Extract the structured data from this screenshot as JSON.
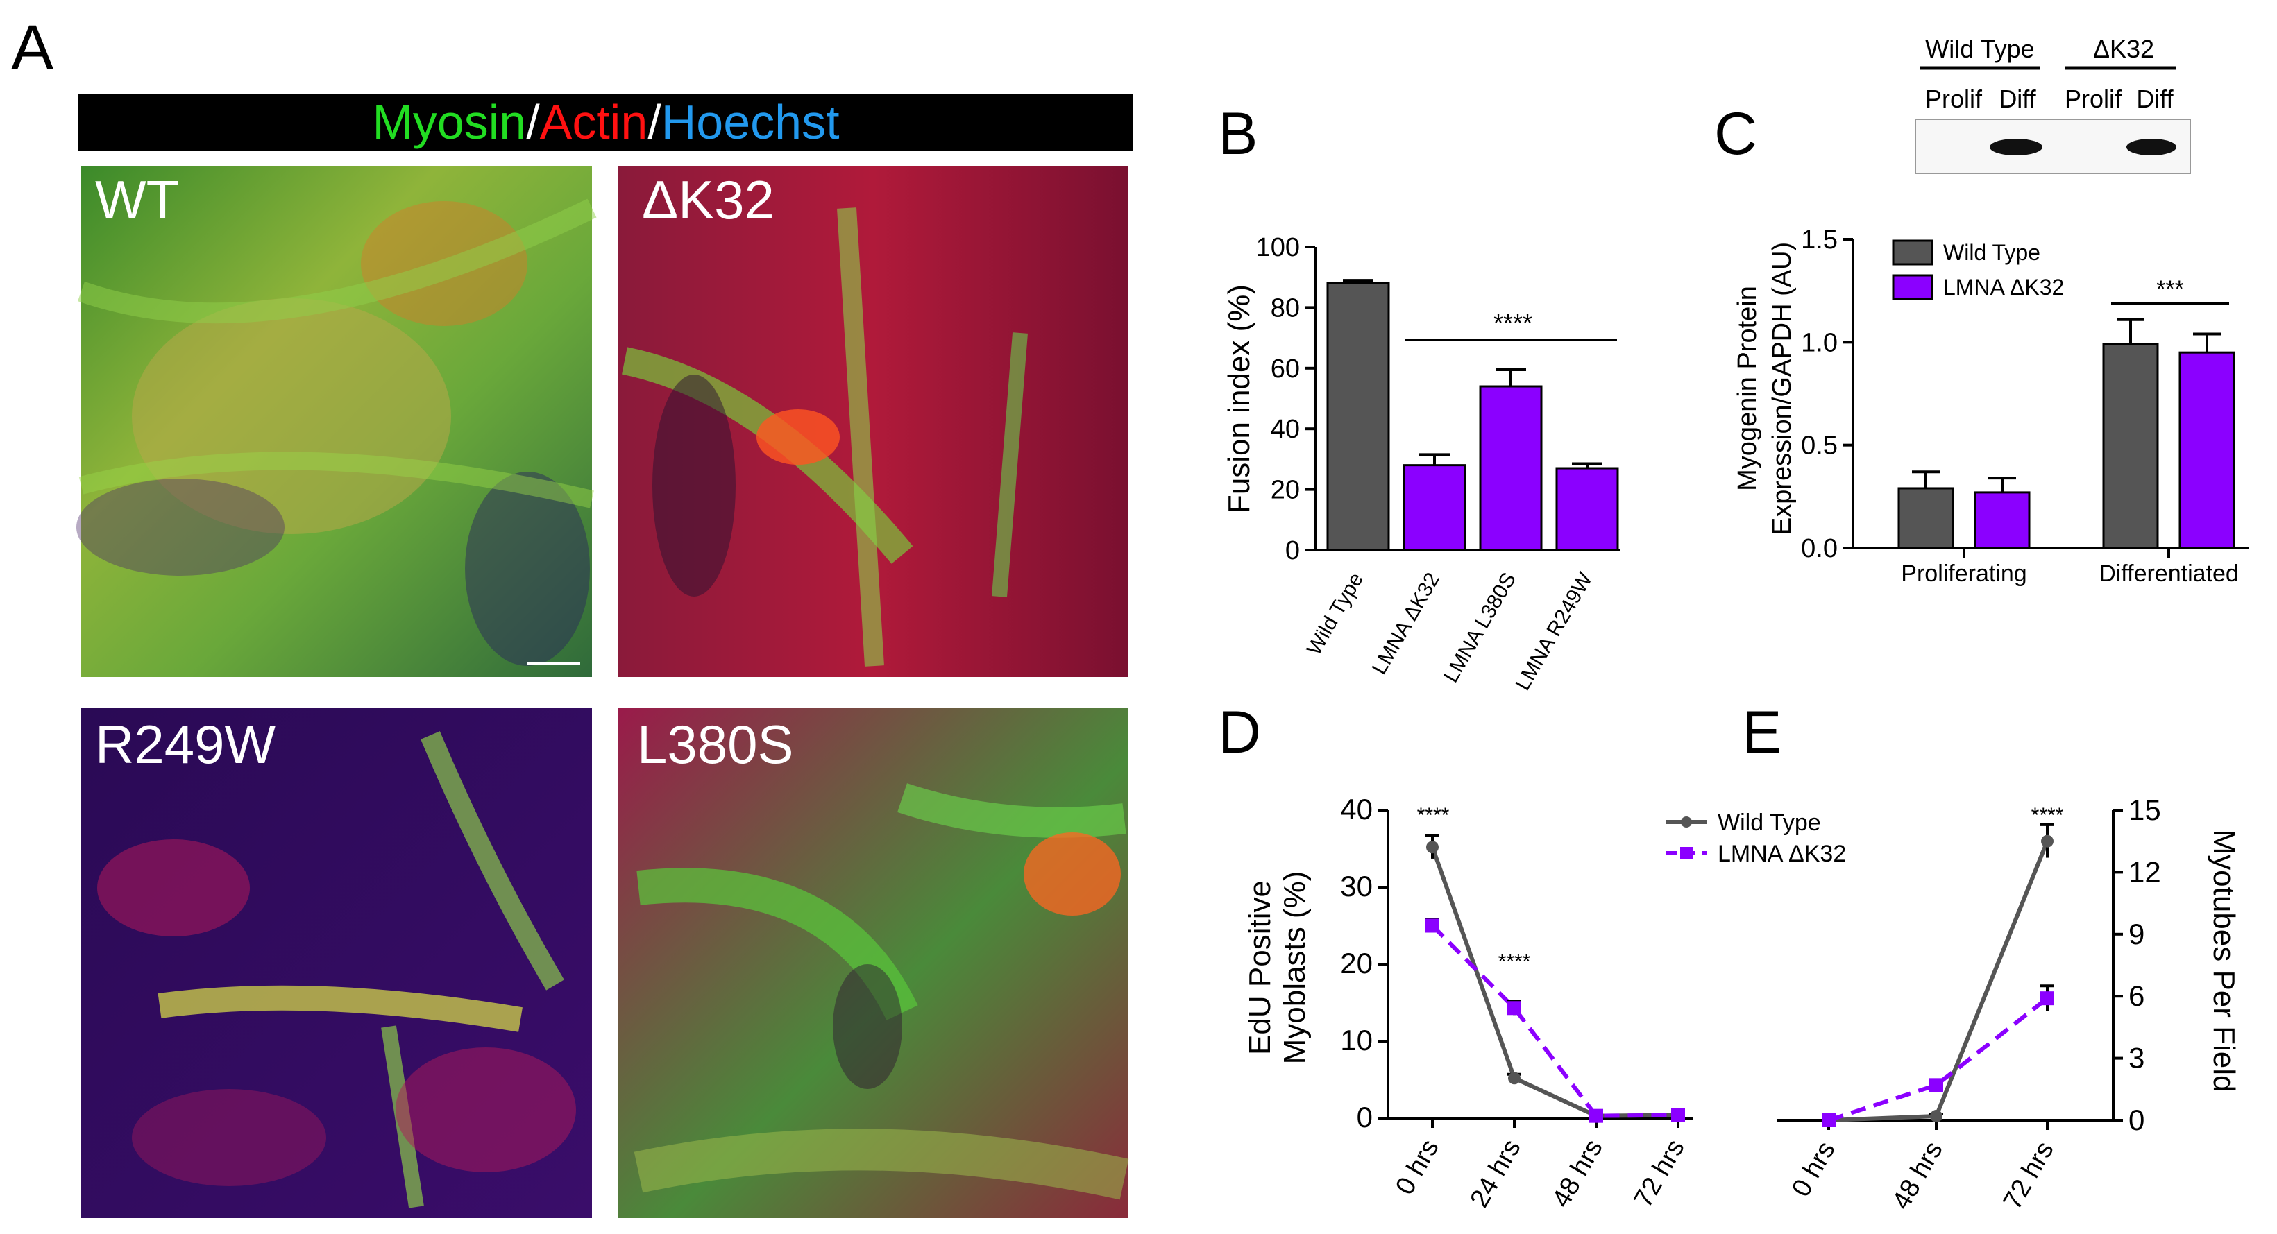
{
  "panel_letters": {
    "A": "A",
    "B": "B",
    "C": "C",
    "D": "D",
    "E": "E"
  },
  "panel_a": {
    "header": {
      "myosin": "Myosin",
      "actin": "Actin",
      "hoechst": "Hoechst",
      "slash": "/"
    },
    "images": [
      "WT",
      "ΔK32",
      "R249W",
      "L380S"
    ]
  },
  "colors": {
    "wild_type": "#555555",
    "lmna": "#8B00FF",
    "myosin_text": "#22dd22",
    "actin_text": "#ff1111",
    "hoechst_text": "#2299ee"
  },
  "blot": {
    "groups": [
      "Wild Type",
      "ΔK32"
    ],
    "lanes": [
      "Prolif",
      "Diff",
      "Prolif",
      "Diff"
    ]
  },
  "chart_data": [
    {
      "panel": "B",
      "type": "bar",
      "categories": [
        "Wild Type",
        "LMNA ΔK32",
        "LMNA L380S",
        "LMNA R249W"
      ],
      "values": [
        88,
        28,
        54,
        27
      ],
      "errors": [
        1,
        3.5,
        5.5,
        1.5
      ],
      "ylabel": "Fusion index (%)",
      "ylim": [
        0,
        100
      ],
      "yticks": [
        "0",
        "20",
        "40",
        "60",
        "80",
        "100"
      ],
      "significance": "****"
    },
    {
      "panel": "C",
      "type": "bar",
      "categories": [
        "Proliferating",
        "Differentiated"
      ],
      "series": [
        {
          "name": "Wild Type",
          "values": [
            0.29,
            0.99
          ],
          "errors": [
            0.08,
            0.12
          ]
        },
        {
          "name": "LMNA ΔK32",
          "values": [
            0.27,
            0.95
          ],
          "errors": [
            0.07,
            0.09
          ]
        }
      ],
      "ylabel_lines": [
        "Myogenin Protein",
        "Expression/GAPDH (AU)"
      ],
      "ylim": [
        0,
        1.5
      ],
      "yticks": [
        "0.0",
        "0.5",
        "1.0",
        "1.5"
      ],
      "significance": "***"
    },
    {
      "panel": "D",
      "type": "line",
      "x": [
        "0 hrs",
        "24 hrs",
        "48 hrs",
        "72 hrs"
      ],
      "series": [
        {
          "name": "Wild Type",
          "values": [
            35.2,
            5.2,
            0.3,
            0.4
          ],
          "errors": [
            1.5,
            0.5,
            0.2,
            0.2
          ]
        },
        {
          "name": "LMNA ΔK32",
          "values": [
            25,
            14.3,
            0.3,
            0.4
          ],
          "errors": [
            0.8,
            0.9,
            0.2,
            0.2
          ]
        }
      ],
      "ylabel_lines": [
        "EdU Positive",
        "Myoblasts (%)"
      ],
      "ylim": [
        0,
        40
      ],
      "yticks": [
        "0",
        "10",
        "20",
        "30",
        "40"
      ],
      "annotations": [
        "****",
        "****"
      ]
    },
    {
      "panel": "E",
      "type": "line",
      "x": [
        "0 hrs",
        "48 hrs",
        "72 hrs"
      ],
      "series": [
        {
          "name": "Wild Type",
          "values": [
            0,
            0.2,
            13.5
          ],
          "errors": [
            0.1,
            0.1,
            0.8
          ]
        },
        {
          "name": "LMNA ΔK32",
          "values": [
            0,
            1.7,
            5.9
          ],
          "errors": [
            0.1,
            0.2,
            0.6
          ]
        }
      ],
      "ylabel": "Myotubes Per Field",
      "ylim": [
        0,
        15
      ],
      "yticks": [
        "0",
        "3",
        "6",
        "9",
        "12",
        "15"
      ],
      "annotations": [
        "****"
      ]
    }
  ]
}
